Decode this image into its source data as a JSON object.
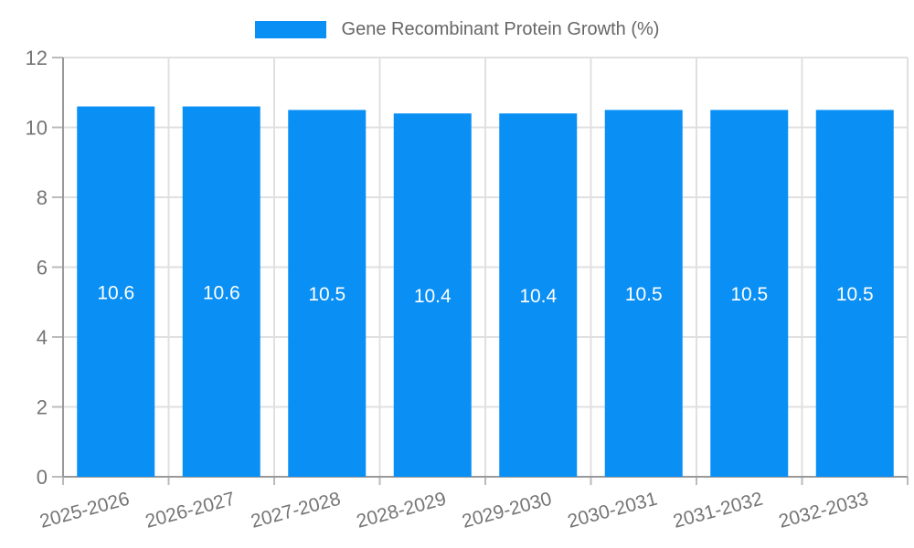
{
  "chart_data": {
    "type": "bar",
    "title": "Gene Recombinant Protein Growth (%)",
    "categories": [
      "2025-2026",
      "2026-2027",
      "2027-2028",
      "2028-2029",
      "2029-2030",
      "2030-2031",
      "2031-2032",
      "2032-2033"
    ],
    "values": [
      10.6,
      10.6,
      10.5,
      10.4,
      10.4,
      10.5,
      10.5,
      10.5
    ],
    "xlabel": "",
    "ylabel": "",
    "ylim": [
      0,
      12
    ],
    "yticks": [
      0,
      2,
      4,
      6,
      8,
      10,
      12
    ],
    "grid": true,
    "legend_position": "top-center",
    "bar_label_decimals": 1,
    "colors": {
      "bar": "#0a8ff5",
      "grid": "#e0e0e0",
      "axis": "#999999",
      "tick": "#bbbbbb",
      "tick_text": "#757575",
      "legend_text": "#666666",
      "bar_label_text": "#ffffff",
      "background": "#ffffff"
    }
  }
}
